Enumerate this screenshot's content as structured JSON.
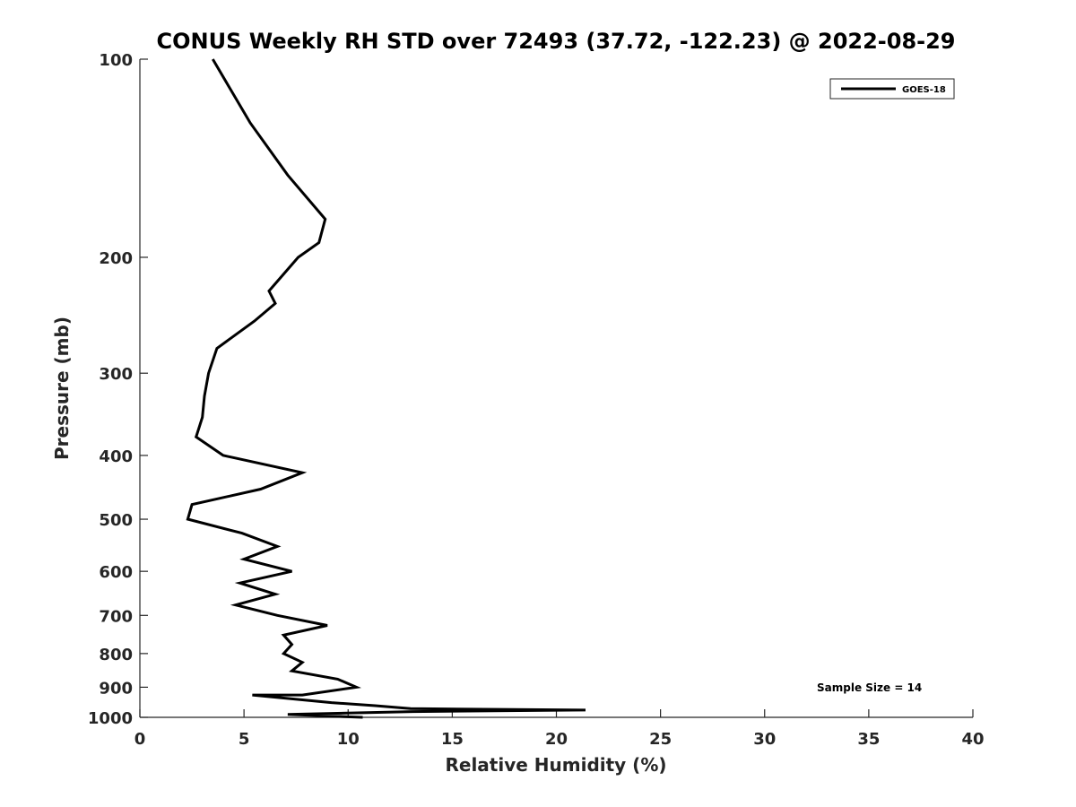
{
  "chart_data": {
    "type": "line",
    "title": "CONUS Weekly RH STD over 72493 (37.72, -122.23) @ 2022-08-29",
    "xlabel": "Relative Humidity (%)",
    "ylabel": "Pressure (mb)",
    "xlim": [
      0,
      40
    ],
    "ylim": [
      100,
      1000
    ],
    "y_scale": "log",
    "y_reversed": true,
    "x_ticks": [
      0,
      5,
      10,
      15,
      20,
      25,
      30,
      35,
      40
    ],
    "y_ticks": [
      100,
      200,
      300,
      400,
      500,
      600,
      700,
      800,
      900,
      1000
    ],
    "grid": false,
    "legend_position": "top-right",
    "annotation": "Sample Size = 14",
    "series": [
      {
        "name": "GOES-18",
        "color": "#000000",
        "points": [
          [
            3.5,
            100
          ],
          [
            5.3,
            125
          ],
          [
            7.1,
            150
          ],
          [
            8.9,
            175
          ],
          [
            8.6,
            190
          ],
          [
            7.6,
            200
          ],
          [
            6.2,
            225
          ],
          [
            6.5,
            235
          ],
          [
            5.5,
            250
          ],
          [
            3.7,
            275
          ],
          [
            3.3,
            300
          ],
          [
            3.1,
            325
          ],
          [
            3.0,
            350
          ],
          [
            2.7,
            375
          ],
          [
            4.0,
            400
          ],
          [
            7.8,
            425
          ],
          [
            5.8,
            450
          ],
          [
            2.5,
            475
          ],
          [
            2.3,
            500
          ],
          [
            4.9,
            525
          ],
          [
            6.6,
            550
          ],
          [
            5.0,
            575
          ],
          [
            7.3,
            600
          ],
          [
            4.8,
            625
          ],
          [
            6.5,
            650
          ],
          [
            4.6,
            675
          ],
          [
            6.6,
            700
          ],
          [
            9.0,
            725
          ],
          [
            6.9,
            750
          ],
          [
            7.3,
            775
          ],
          [
            6.9,
            800
          ],
          [
            7.8,
            825
          ],
          [
            7.3,
            850
          ],
          [
            9.5,
            875
          ],
          [
            10.4,
            900
          ],
          [
            7.8,
            925
          ],
          [
            5.4,
            925
          ],
          [
            9.2,
            950
          ],
          [
            11.3,
            960
          ],
          [
            13.0,
            970
          ],
          [
            21.4,
            975
          ],
          [
            13.1,
            980
          ],
          [
            7.1,
            990
          ],
          [
            10.7,
            1000
          ]
        ]
      }
    ]
  }
}
